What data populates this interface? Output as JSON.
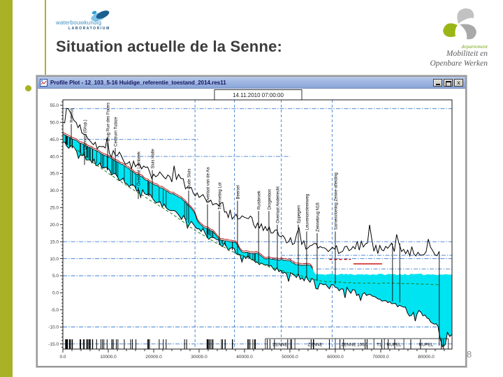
{
  "slide": {
    "page_number": "8",
    "accent_color": "#a9b127"
  },
  "title": "Situation actuelle de la Senne:",
  "logos": {
    "waterbouwkundig": {
      "line1": "waterbouwkundig",
      "line2": "LABORATORIUM"
    },
    "mow": {
      "dept": "departement",
      "line1": "Mobiliteit en",
      "line2": "Openbare Werken"
    }
  },
  "window": {
    "title": "Profile Plot - 12_103_5-16 Huidige_referentie_toestand_2014.res11",
    "close_glyph": "x"
  },
  "chart_data": {
    "type": "area",
    "subtype": "longitudinal-river-profile",
    "timestamp_label": "14.11.2010 07:00:00",
    "xlim": [
      0,
      85700
    ],
    "ylim": [
      -16.5,
      56.6
    ],
    "x_tick_major": 10000,
    "x_tick_minor": 2000,
    "y_tick_major": 5,
    "y_tick_minor": 1,
    "y_label_from": 55,
    "y_label_to": -15,
    "water_fill": "#00e4f2",
    "guide_color": "#3b7cd0",
    "surface_line_limit": 55500,
    "series": [
      {
        "name": "bank-crest",
        "color": "#000000",
        "rough": 1.5,
        "spike": 1,
        "seed": 7,
        "points": [
          [
            0,
            50
          ],
          [
            1200,
            54
          ],
          [
            2500,
            50.5
          ],
          [
            5000,
            46.5
          ],
          [
            8000,
            43
          ],
          [
            12000,
            40.3
          ],
          [
            16000,
            37
          ],
          [
            20000,
            34.8
          ],
          [
            24000,
            32.5
          ],
          [
            26000,
            33.5
          ],
          [
            27000,
            30.5
          ],
          [
            30000,
            28
          ],
          [
            33000,
            25.8
          ],
          [
            35200,
            26.5
          ],
          [
            36000,
            23.8
          ],
          [
            39000,
            21.8
          ],
          [
            41300,
            22.5
          ],
          [
            42000,
            20
          ],
          [
            45000,
            18.2
          ],
          [
            48000,
            16.5
          ],
          [
            51000,
            14.5
          ],
          [
            52000,
            19
          ],
          [
            52600,
            14.2
          ],
          [
            54000,
            13.2
          ],
          [
            58000,
            12.8
          ],
          [
            63000,
            12.4
          ],
          [
            68000,
            16
          ],
          [
            68500,
            12.2
          ],
          [
            72400,
            14.6
          ],
          [
            73000,
            12.1
          ],
          [
            74000,
            14.6
          ],
          [
            74600,
            12.1
          ],
          [
            80000,
            12.1
          ],
          [
            82900,
            12.2
          ]
        ]
      },
      {
        "name": "water-surface",
        "color": "#aa0000",
        "rough": 0.22,
        "spike": 0,
        "seed": 11,
        "points": [
          [
            0,
            46.6
          ],
          [
            2000,
            45.2
          ],
          [
            5000,
            43.2
          ],
          [
            8000,
            41.2
          ],
          [
            11000,
            39.2
          ],
          [
            14000,
            36.8
          ],
          [
            17000,
            34.2
          ],
          [
            20000,
            31.8
          ],
          [
            23000,
            29.8
          ],
          [
            26000,
            27.8
          ],
          [
            28000,
            25.2
          ],
          [
            29000,
            23.5
          ],
          [
            29600,
            21.2
          ],
          [
            31000,
            19.2
          ],
          [
            33000,
            18
          ],
          [
            34800,
            15.4
          ],
          [
            38000,
            14.8
          ],
          [
            39400,
            12
          ],
          [
            43000,
            11.4
          ],
          [
            44400,
            10
          ],
          [
            50000,
            9.5
          ],
          [
            51200,
            8.3
          ],
          [
            54500,
            8
          ],
          [
            55600,
            5.4
          ],
          [
            85700,
            5.4
          ]
        ]
      },
      {
        "name": "river-bed",
        "color": "#000000",
        "rough": 0.85,
        "spike": -1,
        "seed": 5,
        "points": [
          [
            0,
            44.2
          ],
          [
            3000,
            41.6
          ],
          [
            6000,
            39.1
          ],
          [
            9000,
            36.6
          ],
          [
            12000,
            34.1
          ],
          [
            15000,
            31.6
          ],
          [
            18000,
            29.1
          ],
          [
            21000,
            26.6
          ],
          [
            24000,
            24.1
          ],
          [
            27000,
            21.6
          ],
          [
            30000,
            18.8
          ],
          [
            33000,
            16.2
          ],
          [
            36000,
            13.6
          ],
          [
            39000,
            11.2
          ],
          [
            42000,
            9.6
          ],
          [
            45000,
            8.2
          ],
          [
            48000,
            6.6
          ],
          [
            51000,
            5.2
          ],
          [
            54000,
            3.8
          ],
          [
            57000,
            2.6
          ],
          [
            60000,
            1.6
          ],
          [
            63000,
            0.6
          ],
          [
            66000,
            -0.4
          ],
          [
            69000,
            -1.4
          ],
          [
            72000,
            -2.6
          ],
          [
            75000,
            -4.2
          ],
          [
            76800,
            -6.6
          ],
          [
            78400,
            -5.2
          ],
          [
            80200,
            -7.4
          ],
          [
            81800,
            -9.2
          ],
          [
            82600,
            -9.8
          ],
          [
            83100,
            -13.5
          ],
          [
            83600,
            -15.8
          ],
          [
            84200,
            -15.2
          ],
          [
            84700,
            -11.6
          ],
          [
            85200,
            -12.8
          ],
          [
            85700,
            -12.2
          ]
        ]
      },
      {
        "name": "mean-bed-level",
        "color": "#1f7a1f",
        "dash": "4 3",
        "rough": 0.1,
        "spike": 0,
        "seed": 9,
        "points": [
          [
            1500,
            43.6
          ],
          [
            6000,
            38.8
          ],
          [
            12000,
            33.2
          ],
          [
            18000,
            28.2
          ],
          [
            24000,
            23.2
          ],
          [
            29000,
            18.4
          ],
          [
            33000,
            15.2
          ],
          [
            37000,
            12.2
          ],
          [
            41000,
            10.2
          ],
          [
            45000,
            7.8
          ],
          [
            49000,
            6.2
          ],
          [
            53000,
            4.8
          ],
          [
            57000,
            3.4
          ],
          [
            62000,
            3
          ],
          [
            67000,
            2.8
          ],
          [
            72000,
            2.8
          ],
          [
            78000,
            2.6
          ],
          [
            83000,
            2.4
          ]
        ]
      }
    ],
    "red_segments": [
      {
        "y": 8.5,
        "x0": 64000,
        "x1": 70300,
        "dash": null
      },
      {
        "y": 9.8,
        "x0": 58700,
        "x1": 63400,
        "dash": "4 3"
      }
    ],
    "h_guides": [
      {
        "y": 54,
        "x0": 0,
        "x1": 85700
      },
      {
        "y": 45,
        "x0": 0,
        "x1": 30000
      },
      {
        "y": 40,
        "x0": 8000,
        "x1": 50000
      },
      {
        "y": 15,
        "x0": 0,
        "x1": 85700
      },
      {
        "y": 10,
        "x0": 0,
        "x1": 85700
      },
      {
        "y": 5,
        "x0": 0,
        "x1": 57000
      },
      {
        "y": 11,
        "x0": 48000,
        "x1": 85700
      },
      {
        "y": 7,
        "x0": 56000,
        "x1": 85700
      },
      {
        "y": -10,
        "x0": 0,
        "x1": 85700
      },
      {
        "y": -15,
        "x0": 0,
        "x1": 85700
      }
    ],
    "v_guides": [
      29100,
      37800,
      48100,
      59300
    ],
    "structures": [
      {
        "m": 1850,
        "v1": 49.5,
        "v2": 45,
        "label": "Rebecq"
      },
      {
        "m": 4770,
        "v1": 41.5,
        "v2": 37.5,
        "label": "Quenast (Grup.)"
      },
      {
        "m": 9850,
        "v1": 44,
        "v2": 36,
        "label": "Brug Rue des Forers"
      },
      {
        "m": 11540,
        "v1": 42.5,
        "v2": 35,
        "label": "Centrum Tubize"
      },
      {
        "m": 16620,
        "v1": 31,
        "v2": 27.5,
        "label": "Overlaat Lembeek"
      },
      {
        "m": 19700,
        "v1": 36,
        "v2": 28,
        "label": "Sluis Halle"
      },
      {
        "m": 27700,
        "v1": 30,
        "v2": 20.5,
        "label": "Oude Sluis"
      },
      {
        "m": 31850,
        "v1": 26,
        "v2": 16,
        "label": "Overlaat van de Aa"
      },
      {
        "m": 34460,
        "v1": 24,
        "v2": 14,
        "label": "Telemeting Lot"
      },
      {
        "m": 38460,
        "v1": 27,
        "v2": 11.5,
        "label": "Beersel"
      },
      {
        "m": 43100,
        "v1": 24,
        "v2": 9,
        "label": "Ruisbroek"
      },
      {
        "m": 45380,
        "v1": 24,
        "v2": 8,
        "label": "Drogenbos"
      },
      {
        "m": 47230,
        "v1": 20,
        "v2": 7,
        "label": "Overlaat Anderlecht"
      },
      {
        "m": 51850,
        "v1": 20,
        "v2": 5.5,
        "label": "Eppegem"
      },
      {
        "m": 53690,
        "v1": 18,
        "v2": 4.5,
        "label": "Leuvensesteenweg"
      },
      {
        "m": 56000,
        "v1": 17.5,
        "v2": 3.5,
        "label": "Zennebrug N16"
      },
      {
        "m": 60000,
        "v1": 18,
        "v2": 2.5,
        "label": "Samenvloeiing Zenne-afleiding"
      },
      {
        "m": 72600,
        "v1": 14.5,
        "v2": -2.5,
        "label": ""
      },
      {
        "m": 74200,
        "v1": 14.5,
        "v2": -2.8,
        "label": ""
      },
      {
        "m": 82900,
        "v1": 12,
        "v2": -15.5,
        "label": ""
      }
    ],
    "reach_boxes": [
      {
        "label": "ZENNE",
        "x0": 44600,
        "x1": 51100
      },
      {
        "label": "ZENNE",
        "x0": 51100,
        "x1": 60000
      },
      {
        "label": "ZENNE 100/1",
        "x0": 60000,
        "x1": 68500
      },
      {
        "label": "T1",
        "x0": 68500,
        "x1": 70800
      },
      {
        "label": "RUPEL",
        "x0": 70800,
        "x1": 75100
      },
      {
        "label": "RUPEL",
        "x0": 75100,
        "x1": 84900
      }
    ],
    "section_ticks": {
      "seed": 3,
      "ranges": [
        {
          "from": 500,
          "to": 2600,
          "count": 12
        },
        {
          "from": 2700,
          "to": 6500,
          "count": 10
        },
        {
          "from": 6500,
          "to": 12500,
          "count": 12
        },
        {
          "from": 13500,
          "to": 16500,
          "count": 4
        },
        {
          "from": 17500,
          "to": 19500,
          "count": 3
        },
        {
          "from": 21000,
          "to": 24000,
          "count": 3
        },
        {
          "from": 26000,
          "to": 27500,
          "count": 2
        },
        {
          "from": 30500,
          "to": 33500,
          "count": 7
        },
        {
          "from": 34000,
          "to": 36500,
          "count": 4
        },
        {
          "from": 37000,
          "to": 42500,
          "count": 8
        },
        {
          "from": 44000,
          "to": 47000,
          "count": 3
        },
        {
          "from": 48500,
          "to": 52000,
          "count": 3
        },
        {
          "from": 53500,
          "to": 56500,
          "count": 3
        },
        {
          "from": 58000,
          "to": 62000,
          "count": 3
        },
        {
          "from": 64000,
          "to": 68000,
          "count": 2
        },
        {
          "from": 70000,
          "to": 74000,
          "count": 3
        },
        {
          "from": 76000,
          "to": 80000,
          "count": 2
        },
        {
          "from": 81500,
          "to": 84500,
          "count": 2
        }
      ]
    }
  }
}
